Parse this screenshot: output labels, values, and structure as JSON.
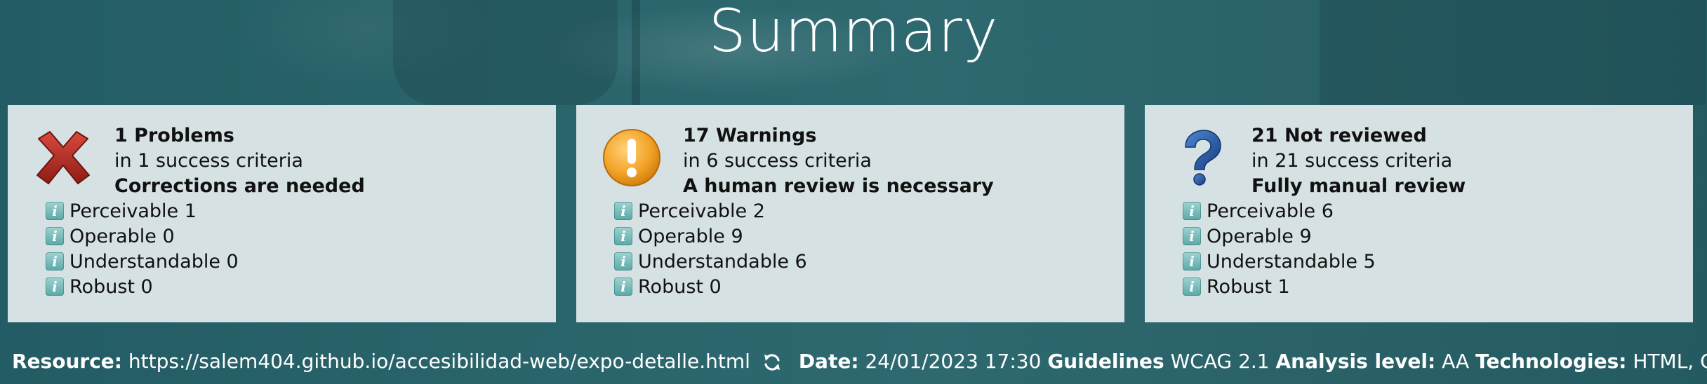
{
  "page": {
    "title": "Summary"
  },
  "cards": [
    {
      "icon": "red-x-icon",
      "headline": "1 Problems",
      "subtitle": "in 1 success criteria",
      "conclusion": "Corrections are needed",
      "criteria": [
        {
          "label": "Perceivable 1"
        },
        {
          "label": "Operable 0"
        },
        {
          "label": "Understandable 0"
        },
        {
          "label": "Robust 0"
        }
      ]
    },
    {
      "icon": "warning-icon",
      "headline": "17 Warnings",
      "subtitle": "in 6 success criteria",
      "conclusion": "A human review is necessary",
      "criteria": [
        {
          "label": "Perceivable 2"
        },
        {
          "label": "Operable 9"
        },
        {
          "label": "Understandable 6"
        },
        {
          "label": "Robust 0"
        }
      ]
    },
    {
      "icon": "question-mark-icon",
      "headline": "21 Not reviewed",
      "subtitle": "in 21 success criteria",
      "conclusion": "Fully manual review",
      "criteria": [
        {
          "label": "Perceivable 6"
        },
        {
          "label": "Operable 9"
        },
        {
          "label": "Understandable 5"
        },
        {
          "label": "Robust 1"
        }
      ]
    }
  ],
  "footer": {
    "resource_label": "Resource:",
    "resource_url": "https://salem404.github.io/accesibilidad-web/expo-detalle.html",
    "date_label": "Date:",
    "date_value": "24/01/2023 17:30",
    "guidelines_label": "Guidelines",
    "guidelines_value": "WCAG 2.1",
    "level_label": "Analysis level:",
    "level_value": "AA",
    "tech_label": "Technologies:",
    "tech_value": "HTML, CSS"
  },
  "colors": {
    "background": "#2a646b",
    "card": "#d5e1e3",
    "problem": "#b22a22",
    "warning": "#f0a020",
    "not_reviewed": "#2a5aa0",
    "info": "#5aa9a7"
  }
}
